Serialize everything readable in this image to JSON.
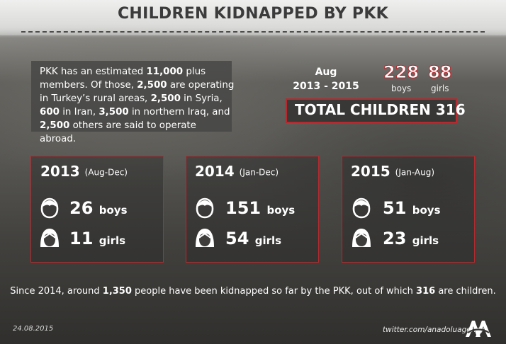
{
  "title": "CHILDREN KIDNAPPED BY PKK",
  "intro": {
    "t1": "PKK has an estimated ",
    "b1": "11,000",
    "t2": " plus members. Of those, ",
    "b2": "2,500",
    "t3": " are operating in Turkey’s rural areas, ",
    "b3": "2,500",
    "t4": " in Syria, ",
    "b4": "600",
    "t5": " in Iran, ",
    "b5": "3,500",
    "t6": " in northern Iraq, and ",
    "b6": "2,500",
    "t7": " others are said to operate abroad."
  },
  "summary": {
    "period_line1": "Aug",
    "period_line2": "2013 - 2015",
    "boys_value": "228",
    "boys_label": "boys",
    "girls_value": "88",
    "girls_label": "girls",
    "total": "TOTAL CHILDREN 316"
  },
  "years": [
    {
      "year": "2013",
      "range": "(Aug-Dec)",
      "boys": "26",
      "boys_label": "boys",
      "girls": "11",
      "girls_label": "girls"
    },
    {
      "year": "2014",
      "range": "(Jan-Dec)",
      "boys": "151",
      "boys_label": "boys",
      "girls": "54",
      "girls_label": "girls"
    },
    {
      "year": "2015",
      "range": "(Jan-Aug)",
      "boys": "51",
      "boys_label": "boys",
      "girls": "23",
      "girls_label": "girls"
    }
  ],
  "footer": {
    "t1": "Since 2014, around ",
    "b1": "1,350",
    "t2": " people have been kidnapped so far by the PKK, out of which ",
    "b2": "316",
    "t3": " are children."
  },
  "date": "24.08.2015",
  "twitter": "twitter.com/anadoluagency",
  "logo_text": "AA",
  "colors": {
    "accent": "#c0272d",
    "title": "#3b3b3b",
    "header_bg": "#e9e9e8"
  },
  "icons": [
    "boy-icon",
    "girl-icon",
    "anadolu-agency-logo"
  ]
}
